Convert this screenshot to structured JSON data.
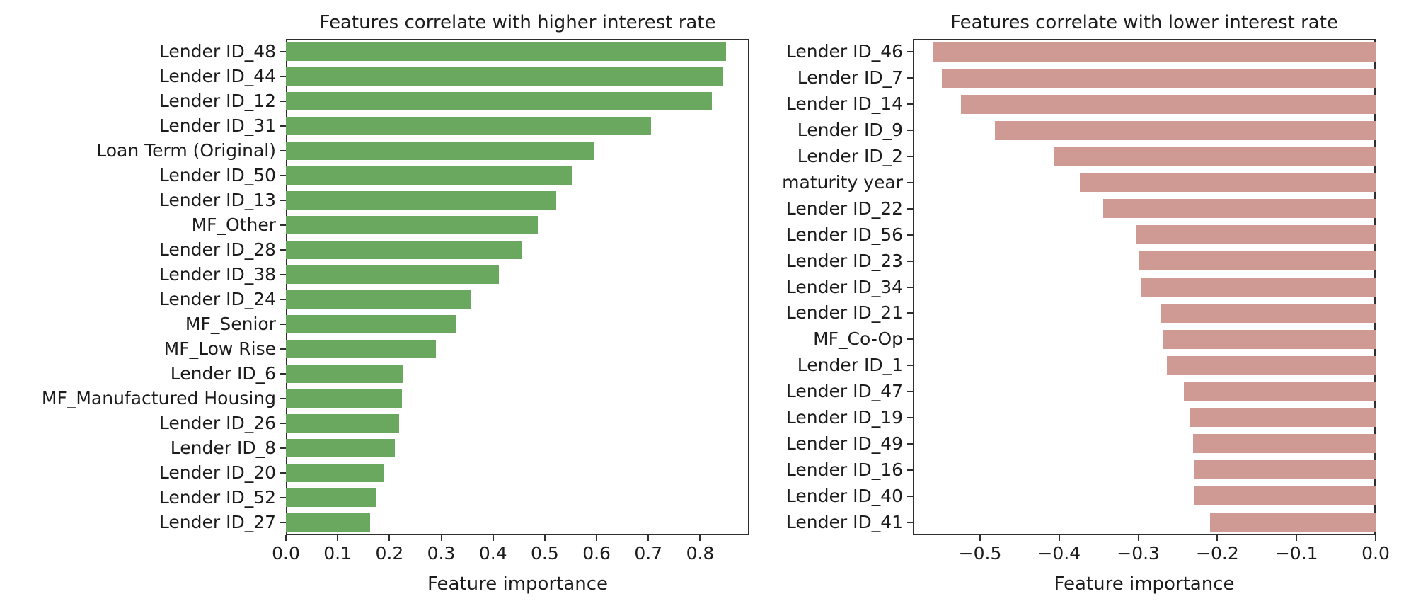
{
  "figure": {
    "background": "#ffffff",
    "text_color": "#1c1c1c",
    "spine_color": "#2e2e2e"
  },
  "chart_data": [
    {
      "type": "bar",
      "orientation": "horizontal",
      "anchor": "left",
      "title": "Features correlate with higher interest rate",
      "xlabel": "Feature importance",
      "bar_color": "#6aa75f",
      "xlim": [
        0,
        0.895
      ],
      "xticks": [
        0.0,
        0.1,
        0.2,
        0.3,
        0.4,
        0.5,
        0.6,
        0.7,
        0.8
      ],
      "grid": false,
      "legend": null,
      "categories": [
        "Lender ID_48",
        "Lender ID_44",
        "Lender ID_12",
        "Lender ID_31",
        "Loan Term (Original)",
        "Lender ID_50",
        "Lender ID_13",
        "MF_Other",
        "Lender ID_28",
        "Lender ID_38",
        "Lender ID_24",
        "MF_Senior",
        "MF_Low Rise",
        "Lender ID_6",
        "MF_Manufactured Housing",
        "Lender ID_26",
        "Lender ID_8",
        "Lender ID_20",
        "Lender ID_52",
        "Lender ID_27"
      ],
      "values": [
        0.85,
        0.845,
        0.822,
        0.705,
        0.595,
        0.553,
        0.522,
        0.486,
        0.456,
        0.411,
        0.356,
        0.329,
        0.29,
        0.225,
        0.224,
        0.219,
        0.21,
        0.19,
        0.175,
        0.162
      ]
    },
    {
      "type": "bar",
      "orientation": "horizontal",
      "anchor": "right",
      "title": "Features correlate with lower interest rate",
      "xlabel": "Feature importance",
      "bar_color": "#cf9a93",
      "xlim": [
        -0.585,
        0
      ],
      "xticks": [
        -0.5,
        -0.4,
        -0.3,
        -0.2,
        -0.1,
        0.0
      ],
      "grid": false,
      "legend": null,
      "categories": [
        "Lender ID_46",
        "Lender ID_7",
        "Lender ID_14",
        "Lender ID_9",
        "Lender ID_2",
        "maturity year",
        "Lender ID_22",
        "Lender ID_56",
        "Lender ID_23",
        "Lender ID_34",
        "Lender ID_21",
        "MF_Co-Op",
        "Lender ID_1",
        "Lender ID_47",
        "Lender ID_19",
        "Lender ID_49",
        "Lender ID_16",
        "Lender ID_40",
        "Lender ID_41"
      ],
      "values": [
        -0.559,
        -0.548,
        -0.524,
        -0.481,
        -0.407,
        -0.374,
        -0.344,
        -0.302,
        -0.3,
        -0.297,
        -0.271,
        -0.269,
        -0.264,
        -0.242,
        -0.234,
        -0.231,
        -0.23,
        -0.229,
        -0.209
      ]
    }
  ]
}
